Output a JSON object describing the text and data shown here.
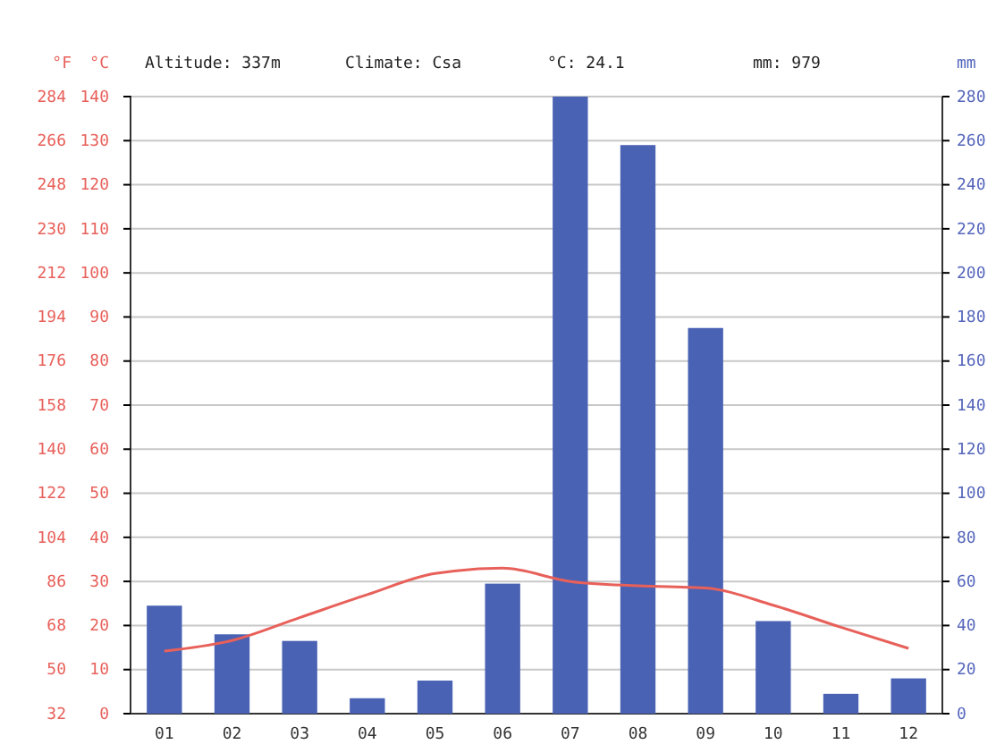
{
  "chart_data": {
    "type": "bar",
    "categories": [
      "01",
      "02",
      "03",
      "04",
      "05",
      "06",
      "07",
      "08",
      "09",
      "10",
      "11",
      "12"
    ],
    "ylabel": "°C",
    "y2label": "mm",
    "y3label": "°F",
    "annotations": [
      "Altitude: 337m",
      "Climate: Csa",
      "°C: 24.1",
      "mm: 979"
    ],
    "ylim": [
      0,
      140
    ],
    "yticks": [
      0,
      10,
      20,
      30,
      40,
      50,
      60,
      70,
      80,
      90,
      100,
      110,
      120,
      130,
      140
    ],
    "y2lim": [
      0,
      280
    ],
    "y2ticks": [
      0,
      20,
      40,
      60,
      80,
      100,
      120,
      140,
      160,
      180,
      200,
      220,
      240,
      260,
      280
    ],
    "y3lim": [
      32,
      284
    ],
    "y3ticks": [
      32,
      50,
      68,
      86,
      104,
      122,
      140,
      158,
      176,
      194,
      212,
      230,
      248,
      266,
      284
    ],
    "grid": "y",
    "series": [
      {
        "axis": "y2",
        "color": "#4a62b4",
        "values": [
          49,
          36,
          33,
          7,
          15,
          59,
          280,
          258,
          175,
          42,
          9,
          16
        ]
      },
      {
        "type": "line",
        "axis": "y",
        "color": "#e8605a",
        "values": [
          14.2,
          16.6,
          21.8,
          27,
          31.8,
          33,
          30,
          29,
          28.5,
          24.6,
          19.6,
          14.8
        ]
      }
    ]
  }
}
